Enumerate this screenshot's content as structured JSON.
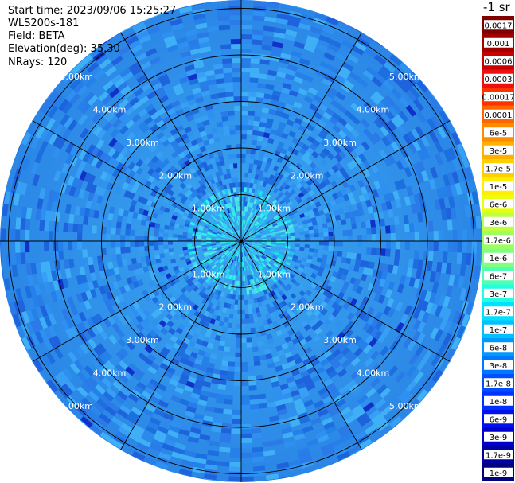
{
  "header": {
    "start_time": "Start time: 2023/09/06 15:25:27",
    "instrument": "WLS200s-181",
    "field": "Field: BETA",
    "elevation": "Elevation(deg): 35.30",
    "nrays": "NRays: 120"
  },
  "colorbar": {
    "unit_label": "-1 sr",
    "labels": [
      "0.0017",
      "0.001",
      "0.0006",
      "0.0003",
      "0.00017",
      "0.0001",
      "6e-5",
      "3e-5",
      "1.7e-5",
      "1e-5",
      "6e-6",
      "3e-6",
      "1.7e-6",
      "1e-6",
      "6e-7",
      "3e-7",
      "1.7e-7",
      "1e-7",
      "6e-8",
      "3e-8",
      "1.7e-8",
      "1e-8",
      "6e-9",
      "3e-9",
      "1.7e-9",
      "1e-9"
    ],
    "colors": [
      "#800000",
      "#a00000",
      "#c80000",
      "#ee1010",
      "#ff3300",
      "#ff6600",
      "#ff8c00",
      "#ffb000",
      "#ffd000",
      "#ffee00",
      "#e8ff10",
      "#c0ff40",
      "#a0ff60",
      "#80ff80",
      "#50ffb0",
      "#20ffe0",
      "#00e0ff",
      "#00c0ff",
      "#0099ff",
      "#0077ff",
      "#0050ff",
      "#0030ff",
      "#0010ee",
      "#0000cc",
      "#0000a0",
      "#000080"
    ]
  },
  "chart_data": {
    "type": "heatmap",
    "projection": "polar (PPI)",
    "field": "BETA",
    "rays": 120,
    "range_rings_km": [
      1.0,
      2.0,
      3.0,
      4.0,
      5.0
    ],
    "range_ring_labels": [
      "1.00km",
      "2.00km",
      "3.00km",
      "4.00km",
      "5.00km"
    ],
    "spoke_count": 12,
    "colorbar_scale": "log"
  }
}
